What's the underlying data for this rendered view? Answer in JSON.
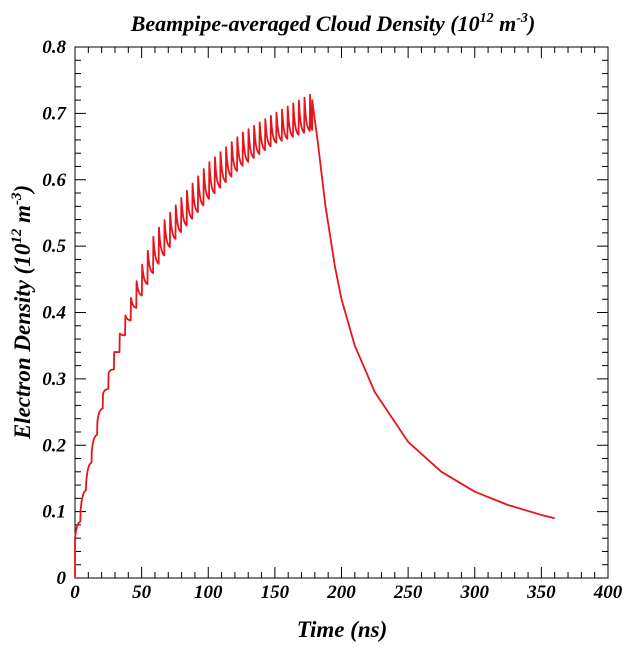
{
  "chart_data": {
    "type": "line",
    "title": {
      "main": "Beampipe-averaged Cloud Density (10",
      "exp1": "12",
      "mid": " m",
      "exp2": "-3",
      "end": ")"
    },
    "xlabel": "Time (ns)",
    "ylabel": {
      "main": "Electron Density (10",
      "exp1": "12",
      "mid": " m",
      "exp2": "-3",
      "end": ")"
    },
    "xlim": [
      0,
      400
    ],
    "ylim": [
      0,
      0.8
    ],
    "xticks": [
      0,
      50,
      100,
      150,
      200,
      250,
      300,
      350,
      400
    ],
    "yticks": [
      0,
      0.1,
      0.2,
      0.3,
      0.4,
      0.5,
      0.6,
      0.7,
      0.8
    ],
    "xtick_labels": [
      "0",
      "50",
      "100",
      "150",
      "200",
      "250",
      "300",
      "350",
      "400"
    ],
    "ytick_labels": [
      "0",
      "0.1",
      "0.2",
      "0.3",
      "0.4",
      "0.5",
      "0.6",
      "0.7",
      "0.8"
    ],
    "grid": false,
    "series": [
      {
        "color": "#e8141b",
        "bunch_spacing_ns": 4.2,
        "num_bunches": 43,
        "fill_end_ns": 178,
        "end_ns": 360,
        "upper_envelope": [
          [
            0,
            0.06
          ],
          [
            4,
            0.1
          ],
          [
            8,
            0.14
          ],
          [
            12,
            0.185
          ],
          [
            20,
            0.27
          ],
          [
            30,
            0.345
          ],
          [
            40,
            0.41
          ],
          [
            50,
            0.47
          ],
          [
            60,
            0.52
          ],
          [
            75,
            0.56
          ],
          [
            100,
            0.625
          ],
          [
            125,
            0.67
          ],
          [
            150,
            0.7
          ],
          [
            178,
            0.73
          ]
        ],
        "lower_envelope": [
          [
            0,
            0.045
          ],
          [
            4,
            0.085
          ],
          [
            8,
            0.13
          ],
          [
            12,
            0.17
          ],
          [
            20,
            0.25
          ],
          [
            30,
            0.32
          ],
          [
            40,
            0.38
          ],
          [
            50,
            0.425
          ],
          [
            60,
            0.465
          ],
          [
            75,
            0.51
          ],
          [
            100,
            0.57
          ],
          [
            125,
            0.62
          ],
          [
            150,
            0.655
          ],
          [
            178,
            0.675
          ]
        ],
        "decay_points": [
          [
            178,
            0.72
          ],
          [
            182,
            0.66
          ],
          [
            188,
            0.56
          ],
          [
            195,
            0.47
          ],
          [
            200,
            0.42
          ],
          [
            210,
            0.35
          ],
          [
            225,
            0.28
          ],
          [
            250,
            0.205
          ],
          [
            275,
            0.16
          ],
          [
            300,
            0.13
          ],
          [
            325,
            0.11
          ],
          [
            350,
            0.095
          ],
          [
            360,
            0.09
          ]
        ]
      }
    ]
  }
}
